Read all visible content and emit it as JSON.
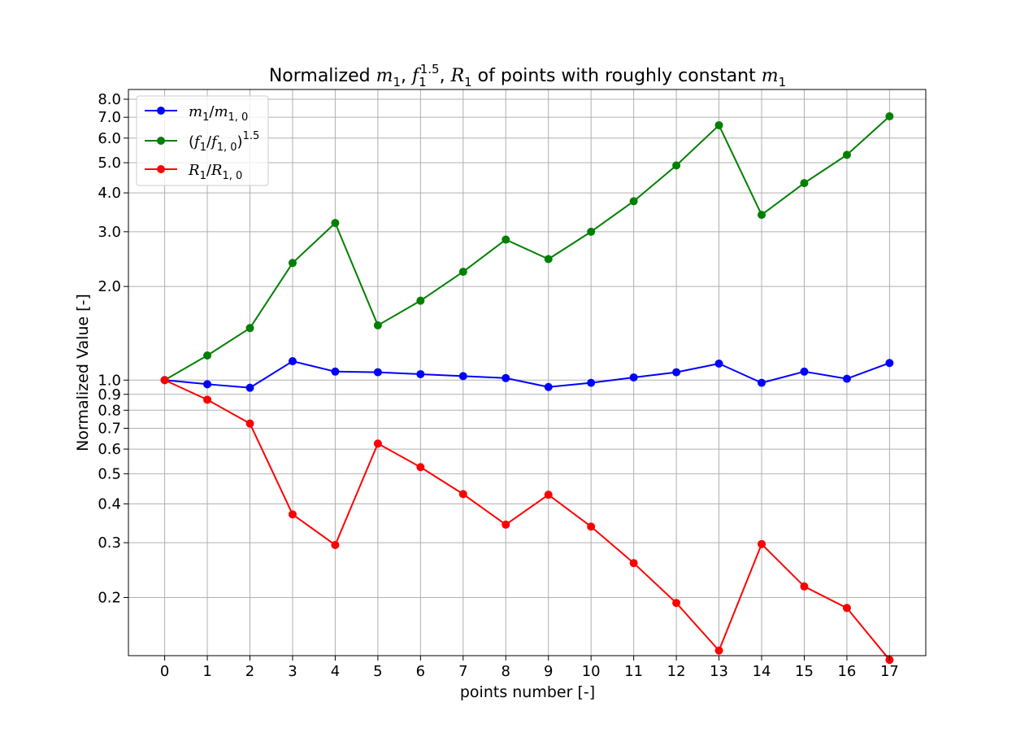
{
  "chart_data": {
    "type": "line",
    "title": {
      "prefix": "Normalized ",
      "m": "m",
      "sub1": "1",
      "comma": ", ",
      "f": "f",
      "sup": "1.5",
      "R": "R",
      "middle": " of points with roughly constant ",
      "full": "Normalized m1, f1^1.5, R1 of points with roughly constant m1"
    },
    "xlabel": "points number [-]",
    "ylabel": "Normalized Value [-]",
    "yscale": "log",
    "ylim": [
      0.13,
      8.6
    ],
    "xlim": [
      -0.85,
      17.85
    ],
    "grid": true,
    "legend_position": "upper left",
    "x": [
      0,
      1,
      2,
      3,
      4,
      5,
      6,
      7,
      8,
      9,
      10,
      11,
      12,
      13,
      14,
      15,
      16,
      17
    ],
    "x_tick_labels": [
      "0",
      "1",
      "2",
      "3",
      "4",
      "5",
      "6",
      "7",
      "8",
      "9",
      "10",
      "11",
      "12",
      "13",
      "14",
      "15",
      "16",
      "17"
    ],
    "y_ticks": [
      0.2,
      0.3,
      0.4,
      0.5,
      0.6,
      0.7,
      0.8,
      0.9,
      1.0,
      2.0,
      3.0,
      4.0,
      5.0,
      6.0,
      7.0,
      8.0
    ],
    "y_tick_labels": [
      "0.2",
      "0.3",
      "0.4",
      "0.5",
      "0.6",
      "0.7",
      "0.8",
      "0.9",
      "1.0",
      "2.0",
      "3.0",
      "4.0",
      "5.0",
      "6.0",
      "7.0",
      "8.0"
    ],
    "series": [
      {
        "name": "m1/m1,0",
        "label_parts": {
          "num": "m",
          "num_sub": "1",
          "slash": "/",
          "den": "m",
          "den_sub": "1, 0"
        },
        "color": "#0000ff",
        "values": [
          1.0,
          0.97,
          0.945,
          1.15,
          1.065,
          1.06,
          1.045,
          1.03,
          1.015,
          0.95,
          0.98,
          1.02,
          1.06,
          1.13,
          0.98,
          1.065,
          1.01,
          1.135
        ]
      },
      {
        "name": "(f1/f1,0)^1.5",
        "label_parts": {
          "open": "(",
          "num": "f",
          "num_sub": "1",
          "slash": "/",
          "den": "f",
          "den_sub": "1, 0",
          "close": ")",
          "sup": "1.5"
        },
        "color": "#008000",
        "values": [
          1.0,
          1.2,
          1.47,
          2.38,
          3.2,
          1.5,
          1.8,
          2.23,
          2.83,
          2.45,
          3.0,
          3.76,
          4.9,
          6.6,
          3.4,
          4.3,
          5.3,
          7.05
        ]
      },
      {
        "name": "R1/R1,0",
        "label_parts": {
          "num": "R",
          "num_sub": "1",
          "slash": "/",
          "den": "R",
          "den_sub": "1, 0"
        },
        "color": "#ff0000",
        "values": [
          1.0,
          0.865,
          0.725,
          0.37,
          0.295,
          0.625,
          0.525,
          0.43,
          0.343,
          0.428,
          0.338,
          0.258,
          0.192,
          0.135,
          0.297,
          0.217,
          0.185,
          0.126
        ]
      }
    ]
  }
}
